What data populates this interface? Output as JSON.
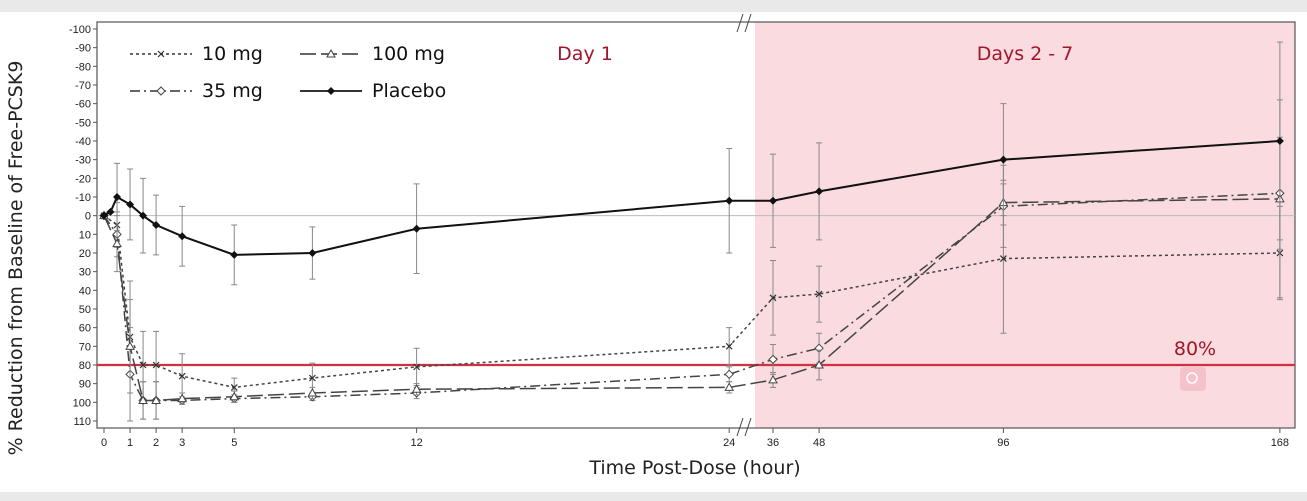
{
  "chart_data": {
    "type": "line",
    "xlabel": "Time Post-Dose (hour)",
    "ylabel": "% Reduction from Baseline of Free-PCSK9",
    "ylim": [
      -100,
      110
    ],
    "y_inverted": true,
    "y_ticks": [
      -100,
      -90,
      -80,
      -70,
      -60,
      -50,
      -40,
      -30,
      -20,
      -10,
      0,
      10,
      20,
      30,
      40,
      50,
      60,
      70,
      80,
      90,
      100,
      110
    ],
    "x_ticks": [
      0,
      1,
      2,
      3,
      5,
      12,
      24,
      36,
      48,
      96,
      168
    ],
    "x_axis_break": "between 24 and 36",
    "regions": [
      {
        "label": "Day 1",
        "from": 0,
        "to": 24
      },
      {
        "label": "Days 2 - 7",
        "from": 36,
        "to": 168,
        "color": "#fadbe0"
      }
    ],
    "reference_lines": [
      {
        "y": 80,
        "label": "80%",
        "color": "#d0313f"
      },
      {
        "y": 0,
        "color": "#bbbbbb"
      }
    ],
    "legend_placement": "top-left",
    "series": [
      {
        "name": "10 mg",
        "marker": "x",
        "dash": "dotted",
        "x": [
          0,
          0.5,
          1,
          1.5,
          2,
          3,
          5,
          8,
          12,
          24,
          36,
          48,
          96,
          168
        ],
        "values": [
          0,
          5,
          65,
          80,
          80,
          86,
          92,
          87,
          81,
          70,
          44,
          42,
          23,
          20
        ],
        "err": [
          0,
          12,
          30,
          18,
          18,
          12,
          5,
          8,
          10,
          10,
          20,
          15,
          40,
          25
        ]
      },
      {
        "name": "35 mg",
        "marker": "diamond",
        "dash": "dashdot",
        "x": [
          0,
          0.5,
          1,
          1.5,
          2,
          3,
          5,
          8,
          12,
          24,
          36,
          48,
          96,
          168
        ],
        "values": [
          0,
          10,
          85,
          99,
          99,
          99,
          98,
          97,
          95,
          85,
          77,
          71,
          -5,
          -12
        ],
        "err": [
          0,
          12,
          25,
          10,
          10,
          2,
          2,
          2,
          3,
          4,
          8,
          8,
          22,
          30
        ]
      },
      {
        "name": "100 mg",
        "marker": "triangle",
        "dash": "longdash",
        "x": [
          0,
          0.5,
          1,
          1.5,
          2,
          3,
          5,
          8,
          12,
          24,
          36,
          48,
          96,
          168
        ],
        "values": [
          0,
          15,
          70,
          99,
          99,
          98,
          97,
          95,
          93,
          92,
          88,
          80,
          -7,
          -9
        ],
        "err": [
          0,
          15,
          25,
          10,
          10,
          3,
          3,
          3,
          3,
          3,
          4,
          8,
          12,
          53
        ]
      },
      {
        "name": "Placebo",
        "marker": "filled-diamond",
        "dash": "solid",
        "x": [
          0,
          0.25,
          0.5,
          1,
          1.5,
          2,
          3,
          5,
          8,
          12,
          24,
          36,
          48,
          96,
          168
        ],
        "values": [
          0,
          -2,
          -10,
          -6,
          0,
          5,
          11,
          21,
          20,
          7,
          -8,
          -8,
          -13,
          -30,
          -40
        ],
        "err": [
          0,
          0,
          18,
          19,
          20,
          16,
          16,
          16,
          14,
          24,
          28,
          25,
          26,
          30,
          53
        ]
      }
    ]
  },
  "annotation_icon": "magnifier-icon"
}
